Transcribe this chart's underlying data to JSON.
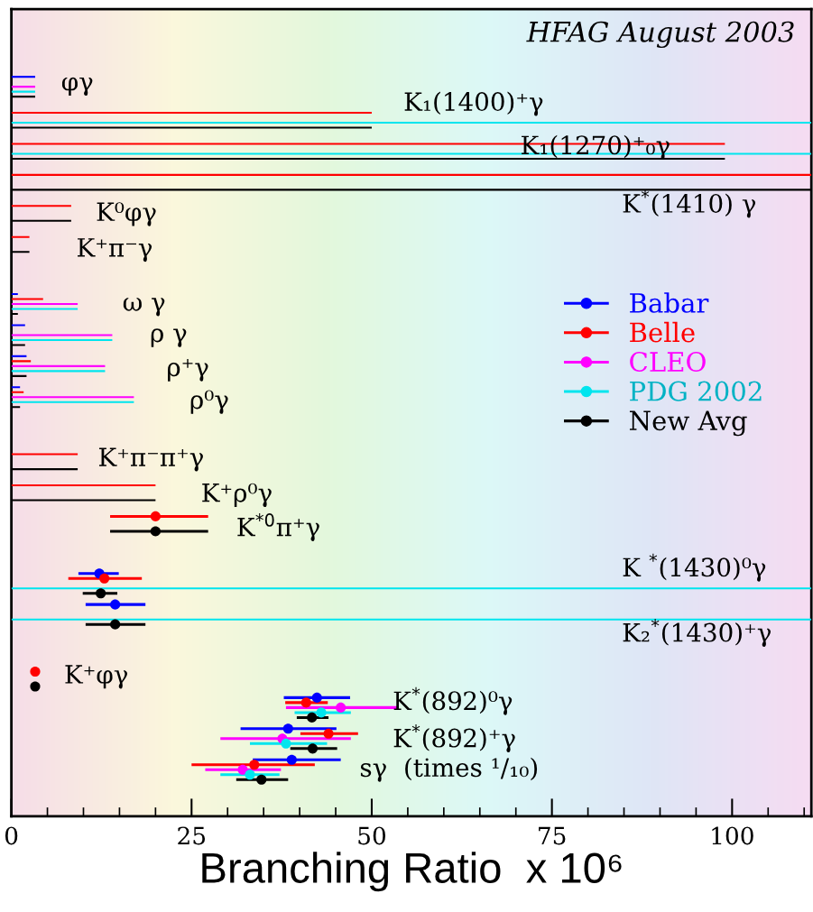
{
  "chart_data": {
    "type": "scatter",
    "orientation": "horizontal",
    "title": "HFAG August 2003",
    "xlabel": "Branching Ratio  x 10⁶",
    "categories": [
      null,
      null,
      null,
      null,
      null,
      null,
      null,
      null,
      null,
      null,
      null,
      null,
      null,
      null,
      null,
      null,
      null,
      null,
      null,
      null,
      null,
      null,
      null,
      null,
      null,
      null
    ],
    "xlim": [
      0,
      111
    ],
    "xticks": [
      0,
      {
        "value": 5,
        "label": null
      },
      {
        "value": 10,
        "label": null
      },
      {
        "value": 15,
        "label": null
      },
      {
        "value": 20,
        "label": null
      },
      25,
      {
        "value": 30,
        "label": null
      },
      {
        "value": 35,
        "label": null
      },
      {
        "value": 40,
        "label": null
      },
      {
        "value": 45,
        "label": null
      },
      50,
      {
        "value": 55,
        "label": null
      },
      {
        "value": 60,
        "label": null
      },
      {
        "value": 65,
        "label": null
      },
      {
        "value": 70,
        "label": null
      },
      75,
      {
        "value": 80,
        "label": null
      },
      {
        "value": 85,
        "label": null
      },
      {
        "value": 90,
        "label": null
      },
      {
        "value": 95,
        "label": null
      },
      100,
      {
        "value": 105,
        "label": null
      },
      {
        "value": 110,
        "label": null
      }
    ],
    "tick_labels": "x",
    "grid": false,
    "legend": "right",
    "marker": "circle",
    "annotations": [
      "φγ",
      "K₁(1400)⁺γ",
      "K₁(1270)⁺₀γ",
      "K$^{*}$(1410) γ",
      "K⁰φγ",
      "K⁺π⁻γ",
      "ω γ",
      "ρ γ",
      "ρ⁺γ",
      "ρ⁰γ",
      "K⁺π⁻π⁺γ",
      "K⁺ρ⁰γ",
      "K$^{*0}$π⁺γ",
      "K $^{*}$(1430)⁰γ",
      "K₂$^{*}$(1430)⁺γ",
      "K⁺φγ",
      "K$^{*}$(892)⁰γ",
      "K$^{*}$(892)⁺γ",
      "sγ  (times ¹/₁₀)"
    ],
    "series": [
      {
        "name": "Babar",
        "color": "#0000ff",
        "values": [
          null,
          null,
          null,
          null,
          null,
          null,
          null,
          null,
          null,
          null,
          null,
          null,
          null,
          null,
          null,
          null,
          null,
          null,
          12.2,
          14.4,
          null,
          null,
          42.4,
          38.4,
          38.9,
          null
        ],
        "errors": [
          null,
          null,
          null,
          null,
          null,
          null,
          null,
          null,
          null,
          null,
          null,
          null,
          null,
          null,
          null,
          null,
          null,
          null,
          [
            9.3,
            14.9
          ],
          [
            10.3,
            18.6
          ],
          null,
          null,
          [
            37.8,
            47.0
          ],
          [
            31.8,
            45.1
          ],
          [
            33.5,
            45.7
          ],
          null
        ]
      },
      {
        "name": "Belle",
        "color": "#ff0000",
        "values": [
          null,
          null,
          null,
          null,
          null,
          null,
          null,
          null,
          null,
          null,
          null,
          null,
          null,
          null,
          null,
          null,
          20,
          null,
          12.9,
          null,
          null,
          3.3,
          40.9,
          44.0,
          33.7,
          null
        ],
        "errors": [
          null,
          null,
          null,
          null,
          null,
          null,
          null,
          null,
          null,
          null,
          null,
          null,
          null,
          null,
          null,
          null,
          [
            13.7,
            27.3
          ],
          null,
          [
            7.9,
            18.1
          ],
          null,
          null,
          0.5,
          [
            38.0,
            43.9
          ],
          [
            40.1,
            48.1
          ],
          [
            25.0,
            42.1
          ],
          null
        ]
      },
      {
        "name": "CLEO",
        "color": "#ff00ff",
        "values": [
          null,
          null,
          null,
          null,
          null,
          null,
          null,
          null,
          null,
          null,
          null,
          null,
          null,
          null,
          null,
          null,
          null,
          null,
          null,
          null,
          null,
          null,
          45.7,
          37.6,
          32.1,
          null
        ],
        "errors": [
          null,
          null,
          null,
          null,
          null,
          null,
          null,
          null,
          null,
          null,
          null,
          null,
          null,
          null,
          null,
          null,
          null,
          null,
          null,
          null,
          null,
          null,
          [
            38.1,
            53.6
          ],
          [
            29.0,
            47.1
          ],
          [
            26.9,
            37.4
          ],
          null
        ]
      },
      {
        "name": "PDG 2002",
        "color": "#00e5ee",
        "values": [
          null,
          null,
          null,
          null,
          null,
          null,
          null,
          null,
          null,
          null,
          null,
          null,
          null,
          null,
          null,
          null,
          null,
          null,
          null,
          null,
          null,
          null,
          43.0,
          38.1,
          33.1,
          null
        ],
        "errors": [
          null,
          null,
          null,
          null,
          null,
          null,
          null,
          null,
          null,
          null,
          null,
          null,
          null,
          null,
          null,
          null,
          null,
          null,
          null,
          null,
          null,
          null,
          [
            39.3,
            47.1
          ],
          [
            33.1,
            43.8
          ],
          [
            29.0,
            37.2
          ],
          null
        ]
      },
      {
        "name": "New Avg",
        "color": "#000000",
        "values": [
          null,
          null,
          null,
          null,
          null,
          null,
          null,
          null,
          null,
          null,
          null,
          null,
          null,
          null,
          null,
          null,
          20,
          null,
          12.4,
          14.4,
          null,
          3.3,
          41.7,
          41.8,
          34.7,
          null
        ],
        "errors": [
          null,
          null,
          null,
          null,
          null,
          null,
          null,
          null,
          null,
          null,
          null,
          null,
          null,
          null,
          null,
          null,
          [
            13.7,
            27.3
          ],
          null,
          [
            9.9,
            14.7
          ],
          [
            10.3,
            18.6
          ],
          null,
          0.5,
          [
            39.6,
            44.0
          ],
          [
            38.7,
            45.2
          ],
          [
            31.2,
            38.4
          ],
          null
        ]
      },
      {
        "type": "bar",
        "color": "#0000ff",
        "values": [
          null,
          null,
          3.3,
          null,
          null,
          null,
          null,
          null,
          null,
          0.9,
          1.9,
          2.1,
          1.2,
          null,
          null,
          null,
          null,
          null,
          null,
          null,
          null,
          null,
          null,
          null,
          null,
          null
        ]
      },
      {
        "type": "bar",
        "color": "#ff0000",
        "values": [
          null,
          null,
          null,
          50,
          99,
          111,
          8.3,
          2.5,
          null,
          4.4,
          null,
          2.7,
          1.7,
          null,
          9.2,
          20,
          null,
          null,
          null,
          null,
          null,
          null,
          null,
          null,
          null,
          null
        ]
      },
      {
        "type": "bar",
        "color": "#ff00ff",
        "values": [
          null,
          null,
          3.3,
          null,
          null,
          null,
          null,
          null,
          null,
          9.2,
          14,
          13,
          17,
          null,
          null,
          null,
          null,
          null,
          null,
          null,
          null,
          null,
          null,
          null,
          null,
          null
        ]
      },
      {
        "type": "bar",
        "color": "#00e5ee",
        "values": [
          null,
          null,
          3.3,
          111,
          111,
          null,
          null,
          null,
          null,
          9.2,
          14,
          13,
          17,
          null,
          null,
          null,
          null,
          null,
          111,
          111,
          null,
          null,
          null,
          null,
          null,
          null
        ]
      },
      {
        "type": "bar",
        "color": "#000000",
        "values": [
          null,
          null,
          3.3,
          50,
          99,
          111,
          8.3,
          2.5,
          null,
          0.9,
          1.9,
          2.1,
          1.2,
          null,
          9.2,
          20,
          null,
          null,
          null,
          null,
          null,
          null,
          null,
          null,
          null,
          null
        ]
      }
    ]
  }
}
